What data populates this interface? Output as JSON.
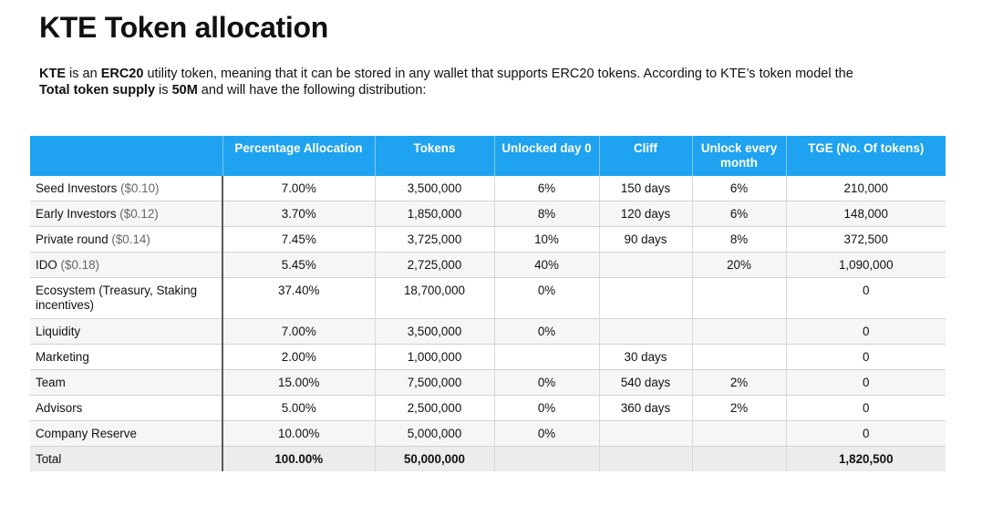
{
  "title": "KTE Token allocation",
  "intro": {
    "t1": "KTE",
    "t2": " is an ",
    "t3": "ERC20",
    "t4": " utility token, meaning that it can be stored in any wallet that supports ERC20 tokens. According to KTE’s token model the ",
    "t5": "Total token supply",
    "t6": " is ",
    "t7": "50M",
    "t8": " and will have the following distribution:"
  },
  "table": {
    "headers": [
      "",
      "Percentage Allocation",
      "Tokens",
      "Unlocked day 0",
      "Cliff",
      "Unlock every month",
      "TGE (No. Of tokens)"
    ],
    "rows": [
      {
        "name": "Seed Investors",
        "price": "($0.10)",
        "pct": "7.00%",
        "tokens": "3,500,000",
        "unlocked": "6%",
        "cliff": "150 days",
        "monthly": "6%",
        "tge": "210,000"
      },
      {
        "name": "Early Investors",
        "price": "($0.12)",
        "pct": "3.70%",
        "tokens": "1,850,000",
        "unlocked": "8%",
        "cliff": "120 days",
        "monthly": "6%",
        "tge": "148,000"
      },
      {
        "name": "Private round",
        "price": "($0.14)",
        "pct": "7.45%",
        "tokens": "3,725,000",
        "unlocked": "10%",
        "cliff": "90 days",
        "monthly": "8%",
        "tge": "372,500"
      },
      {
        "name": "IDO",
        "price": "($0.18)",
        "pct": "5.45%",
        "tokens": "2,725,000",
        "unlocked": "40%",
        "cliff": "",
        "monthly": "20%",
        "tge": "1,090,000"
      },
      {
        "name": "Ecosystem (Treasury, Staking incentives)",
        "price": "",
        "pct": "37.40%",
        "tokens": "18,700,000",
        "unlocked": "0%",
        "cliff": "",
        "monthly": "",
        "tge": "0"
      },
      {
        "name": "Liquidity",
        "price": "",
        "pct": "7.00%",
        "tokens": "3,500,000",
        "unlocked": "0%",
        "cliff": "",
        "monthly": "",
        "tge": "0"
      },
      {
        "name": "Marketing",
        "price": "",
        "pct": "2.00%",
        "tokens": "1,000,000",
        "unlocked": "",
        "cliff": "30 days",
        "monthly": "",
        "tge": "0"
      },
      {
        "name": "Team",
        "price": "",
        "pct": "15.00%",
        "tokens": "7,500,000",
        "unlocked": "0%",
        "cliff": "540 days",
        "monthly": "2%",
        "tge": "0"
      },
      {
        "name": "Advisors",
        "price": "",
        "pct": "5.00%",
        "tokens": "2,500,000",
        "unlocked": "0%",
        "cliff": "360 days",
        "monthly": "2%",
        "tge": "0"
      },
      {
        "name": "Company Reserve",
        "price": "",
        "pct": "10.00%",
        "tokens": "5,000,000",
        "unlocked": "0%",
        "cliff": "",
        "monthly": "",
        "tge": "0"
      }
    ],
    "total": {
      "name": "Total",
      "pct": "100.00%",
      "tokens": "50,000,000",
      "unlocked": "",
      "cliff": "",
      "monthly": "",
      "tge": "1,820,500"
    }
  },
  "colors": {
    "header_bg": "#1fa3f0",
    "header_text": "#ffffff",
    "total_bg": "#ececec"
  }
}
